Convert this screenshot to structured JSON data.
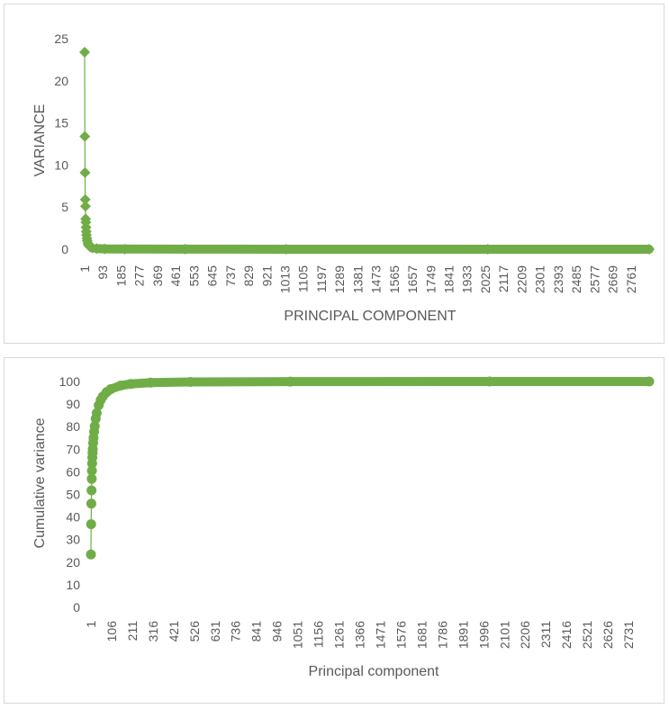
{
  "chart_data": [
    {
      "type": "line",
      "xlabel": "PRINCIPAL COMPONENT",
      "ylabel": "VARIANCE",
      "ylim": [
        0,
        25
      ],
      "yticks": [
        0,
        5,
        10,
        15,
        20,
        25
      ],
      "xlim": [
        1,
        2800
      ],
      "xtick_labels": [
        "1",
        "93",
        "185",
        "277",
        "369",
        "461",
        "553",
        "645",
        "737",
        "829",
        "921",
        "1013",
        "1105",
        "1197",
        "1289",
        "1381",
        "1473",
        "1565",
        "1657",
        "1749",
        "1841",
        "1933",
        "2025",
        "2117",
        "2209",
        "2301",
        "2393",
        "2485",
        "2577",
        "2669",
        "2761"
      ],
      "marker": "diamond",
      "color": "#70ad47",
      "grid": false,
      "legend": "none",
      "series": [
        {
          "x": [
            1,
            2,
            3,
            4,
            5,
            6,
            7,
            8,
            9,
            10,
            12,
            14,
            17,
            20,
            25,
            30,
            40,
            60,
            100,
            200,
            500,
            1000,
            2000,
            2800
          ],
          "values": [
            23.4,
            13.4,
            9.1,
            5.9,
            5.1,
            3.6,
            3.2,
            2.6,
            2.1,
            1.7,
            1.3,
            1.0,
            0.7,
            0.5,
            0.35,
            0.25,
            0.15,
            0.08,
            0.04,
            0.02,
            0.01,
            0.005,
            0.002,
            0.001
          ]
        }
      ]
    },
    {
      "type": "line",
      "xlabel": "Principal component",
      "ylabel": "Cumulative variance",
      "ylim": [
        0,
        100
      ],
      "yticks": [
        0,
        10,
        20,
        30,
        40,
        50,
        60,
        70,
        80,
        90,
        100
      ],
      "xlim": [
        1,
        2800
      ],
      "xtick_labels": [
        "1",
        "106",
        "211",
        "316",
        "421",
        "526",
        "631",
        "736",
        "841",
        "946",
        "1051",
        "1156",
        "1261",
        "1366",
        "1471",
        "1576",
        "1681",
        "1786",
        "1891",
        "1996",
        "2101",
        "2206",
        "2311",
        "2416",
        "2521",
        "2626",
        "2731"
      ],
      "marker": "circle",
      "color": "#70ad47",
      "grid": false,
      "legend": "none",
      "series": [
        {
          "x": [
            1,
            2,
            3,
            4,
            5,
            6,
            7,
            8,
            9,
            10,
            12,
            14,
            17,
            20,
            25,
            30,
            40,
            50,
            60,
            80,
            100,
            150,
            200,
            300,
            500,
            1000,
            2000,
            2800
          ],
          "values": [
            23.4,
            36.8,
            45.9,
            51.8,
            56.9,
            60.5,
            63.7,
            66.3,
            68.4,
            70.1,
            72.8,
            75.0,
            77.8,
            80.2,
            83.5,
            86.0,
            89.5,
            91.8,
            93.3,
            95.3,
            96.6,
            98.2,
            98.9,
            99.5,
            99.8,
            99.95,
            99.99,
            100
          ]
        }
      ]
    }
  ]
}
